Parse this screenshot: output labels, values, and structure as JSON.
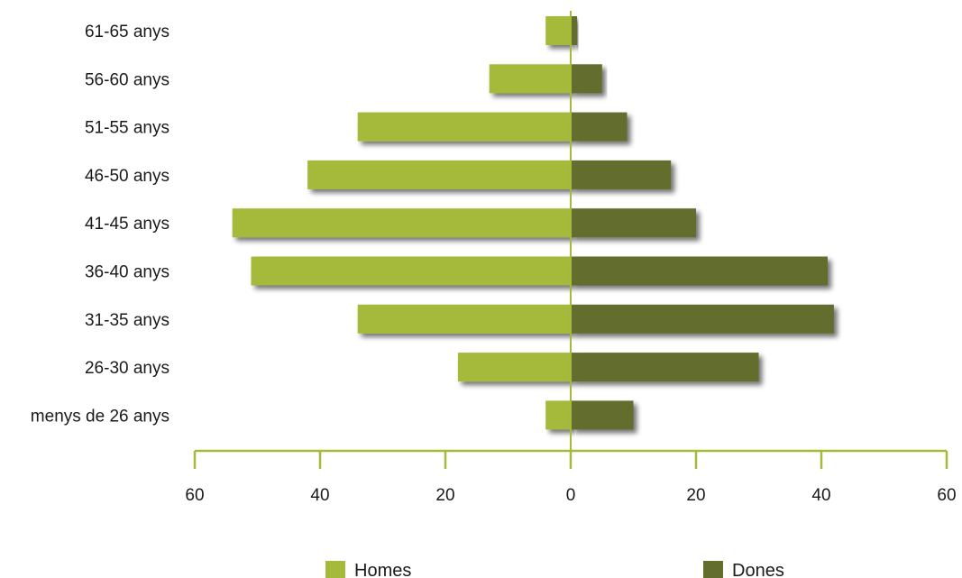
{
  "chart_data": {
    "type": "bar",
    "orientation": "horizontal",
    "categories": [
      "61-65 anys",
      "56-60 anys",
      "51-55 anys",
      "46-50 anys",
      "41-45 anys",
      "36-40 anys",
      "31-35 anys",
      "26-30 anys",
      "menys de 26 anys"
    ],
    "series": [
      {
        "name": "Homes",
        "color": "#a5b93a",
        "side": "left",
        "values": [
          4,
          13,
          34,
          42,
          54,
          51,
          34,
          18,
          4
        ]
      },
      {
        "name": "Dones",
        "color": "#626d2e",
        "side": "right",
        "values": [
          1,
          5,
          9,
          16,
          20,
          41,
          42,
          30,
          10
        ]
      }
    ],
    "xlim": [
      -60,
      60
    ],
    "xticks": [
      -60,
      -40,
      -20,
      0,
      20,
      40,
      60
    ],
    "xtick_labels": [
      "60",
      "40",
      "20",
      "0",
      "20",
      "40",
      "60"
    ],
    "axis_color": "#a5b93a",
    "legend_position": "bottom",
    "grid": false,
    "title": "",
    "xlabel": "",
    "ylabel": ""
  }
}
